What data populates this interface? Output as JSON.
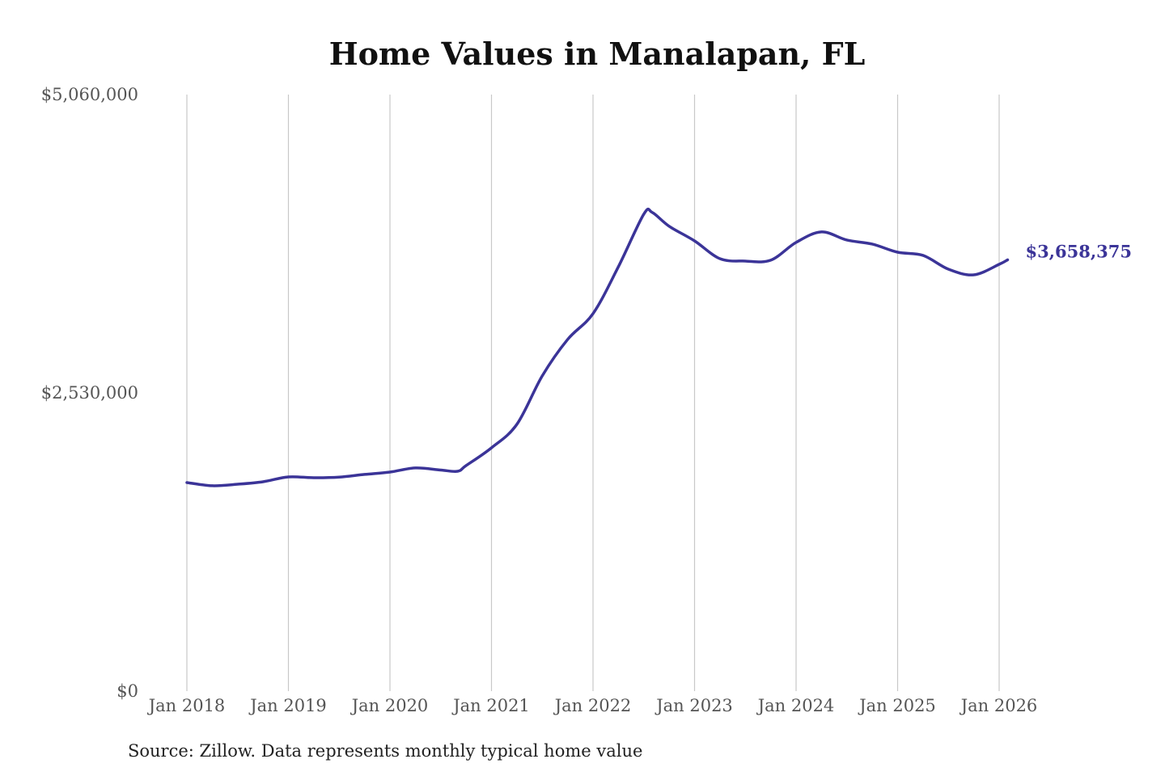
{
  "chart_data": {
    "type": "line",
    "title": "Home Values in Manalapan, FL",
    "xlabel": "",
    "ylabel": "",
    "ylim": [
      0,
      5060000
    ],
    "y_ticks": [
      "$5,060,000",
      "$2,530,000",
      "$0"
    ],
    "y_tick_values": [
      5060000,
      2530000,
      0
    ],
    "x_ticks": [
      "Jan 2018",
      "Jan 2019",
      "Jan 2020",
      "Jan 2021",
      "Jan 2022",
      "Jan 2023",
      "Jan 2024",
      "Jan 2025",
      "Jan 2026"
    ],
    "grid": "vertical",
    "line_color": "#3b3498",
    "end_label": "$3,658,375",
    "series": [
      {
        "x": [
          "2018-01",
          "2018-04",
          "2018-07",
          "2018-10",
          "2019-01",
          "2019-04",
          "2019-07",
          "2019-10",
          "2020-01",
          "2020-04",
          "2020-07",
          "2020-09",
          "2020-10",
          "2021-01",
          "2021-04",
          "2021-07",
          "2021-10",
          "2022-01",
          "2022-04",
          "2022-07",
          "2022-08",
          "2022-10",
          "2023-01",
          "2023-04",
          "2023-07",
          "2023-10",
          "2024-01",
          "2024-04",
          "2024-07",
          "2024-10",
          "2025-01",
          "2025-04",
          "2025-07",
          "2025-10",
          "2026-01",
          "2026-02"
        ],
        "values": [
          1769000,
          1742000,
          1755000,
          1776000,
          1817000,
          1810000,
          1815000,
          1838000,
          1858000,
          1893000,
          1875000,
          1865000,
          1913000,
          2064000,
          2263000,
          2674000,
          2983000,
          3202000,
          3600000,
          4046000,
          4060000,
          3943000,
          3819000,
          3668000,
          3648000,
          3655000,
          3806000,
          3895000,
          3826000,
          3792000,
          3723000,
          3696000,
          3579000,
          3531000,
          3620000,
          3658375
        ]
      }
    ]
  },
  "source": "Source: Zillow. Data represents monthly typical home value"
}
